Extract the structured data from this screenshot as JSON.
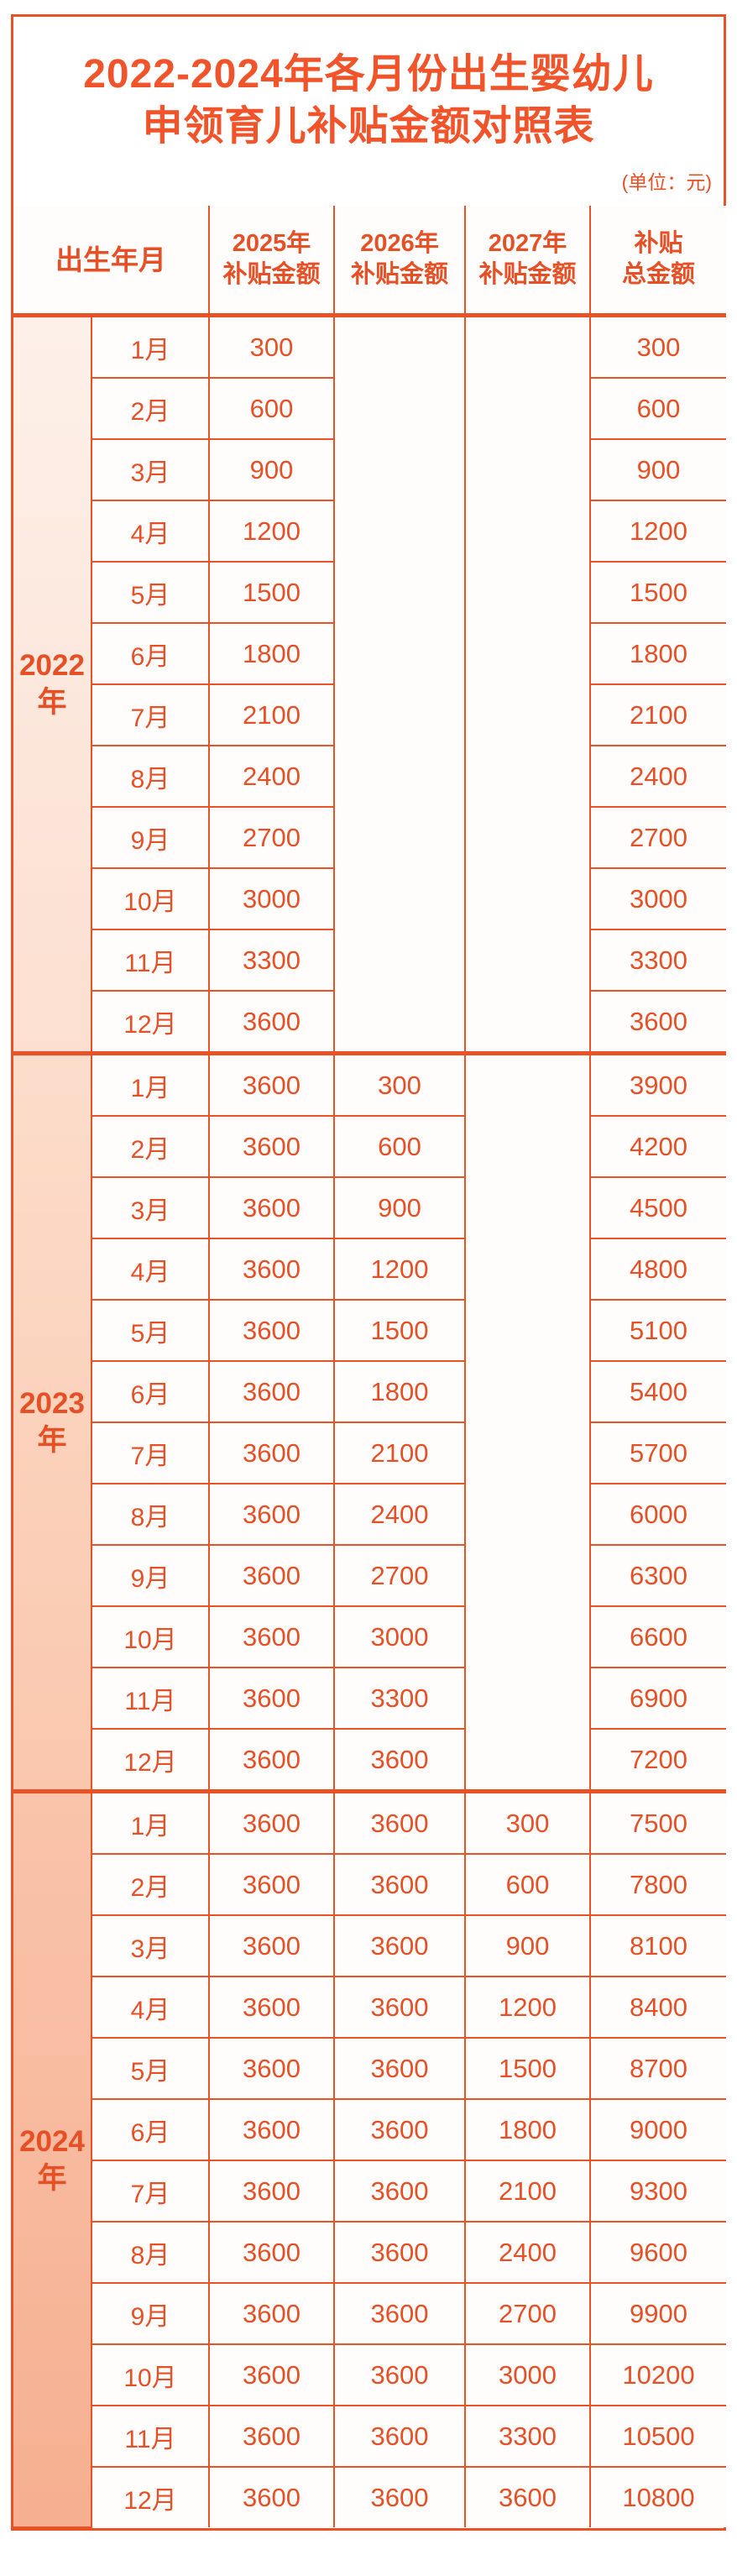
{
  "title": {
    "line1": "2022-2024年各月份出生婴幼儿",
    "line2": "申领育儿补贴金额对照表"
  },
  "unit_note": "(单位：元)",
  "table": {
    "headers": {
      "birth": "出生年月",
      "y2025": {
        "line1": "2025年",
        "line2": "补贴金额"
      },
      "y2026": {
        "line1": "2026年",
        "line2": "补贴金额"
      },
      "y2027": {
        "line1": "2027年",
        "line2": "补贴金额"
      },
      "total": {
        "line1": "补贴",
        "line2": "总金额"
      }
    }
  },
  "colors": {
    "accent": "#e75227",
    "text": "#e55026",
    "title_text": "#f1542a",
    "cell_bg": "#fffdfc",
    "frame_bg": "#ffffff"
  },
  "chart_data": {
    "type": "table",
    "title": "2022-2024年各月份出生婴幼儿申领育儿补贴金额对照表",
    "unit": "(单位：元)",
    "columns": [
      "出生年月",
      "2025年补贴金额",
      "2026年补贴金额",
      "2027年补贴金额",
      "补贴总金额"
    ],
    "sections": [
      {
        "year": "2022年",
        "year_display": [
          "2022",
          "年"
        ],
        "bg": [
          "#fdf0e9",
          "#fcdfd0"
        ],
        "months": [
          "1月",
          "2月",
          "3月",
          "4月",
          "5月",
          "6月",
          "7月",
          "8月",
          "9月",
          "10月",
          "11月",
          "12月"
        ],
        "y2025": [
          300,
          600,
          900,
          1200,
          1500,
          1800,
          2100,
          2400,
          2700,
          3000,
          3300,
          3600
        ],
        "y2026": null,
        "y2027": null,
        "total": [
          300,
          600,
          900,
          1200,
          1500,
          1800,
          2100,
          2400,
          2700,
          3000,
          3300,
          3600
        ]
      },
      {
        "year": "2023年",
        "year_display": [
          "2023",
          "年"
        ],
        "bg": [
          "#fcddcb",
          "#fac7ad"
        ],
        "months": [
          "1月",
          "2月",
          "3月",
          "4月",
          "5月",
          "6月",
          "7月",
          "8月",
          "9月",
          "10月",
          "11月",
          "12月"
        ],
        "y2025": [
          3600,
          3600,
          3600,
          3600,
          3600,
          3600,
          3600,
          3600,
          3600,
          3600,
          3600,
          3600
        ],
        "y2026": [
          300,
          600,
          900,
          1200,
          1500,
          1800,
          2100,
          2400,
          2700,
          3000,
          3300,
          3600
        ],
        "y2027": null,
        "total": [
          3900,
          4200,
          4500,
          4800,
          5100,
          5400,
          5700,
          6000,
          6300,
          6600,
          6900,
          7200
        ]
      },
      {
        "year": "2024年",
        "year_display": [
          "2024",
          "年"
        ],
        "bg": [
          "#f9c4ab",
          "#f6af90"
        ],
        "months": [
          "1月",
          "2月",
          "3月",
          "4月",
          "5月",
          "6月",
          "7月",
          "8月",
          "9月",
          "10月",
          "11月",
          "12月"
        ],
        "y2025": [
          3600,
          3600,
          3600,
          3600,
          3600,
          3600,
          3600,
          3600,
          3600,
          3600,
          3600,
          3600
        ],
        "y2026": [
          3600,
          3600,
          3600,
          3600,
          3600,
          3600,
          3600,
          3600,
          3600,
          3600,
          3600,
          3600
        ],
        "y2027": [
          300,
          600,
          900,
          1200,
          1500,
          1800,
          2100,
          2400,
          2700,
          3000,
          3300,
          3600
        ],
        "total": [
          7500,
          7800,
          8100,
          8400,
          8700,
          9000,
          9300,
          9600,
          9900,
          10200,
          10500,
          10800
        ]
      }
    ]
  }
}
